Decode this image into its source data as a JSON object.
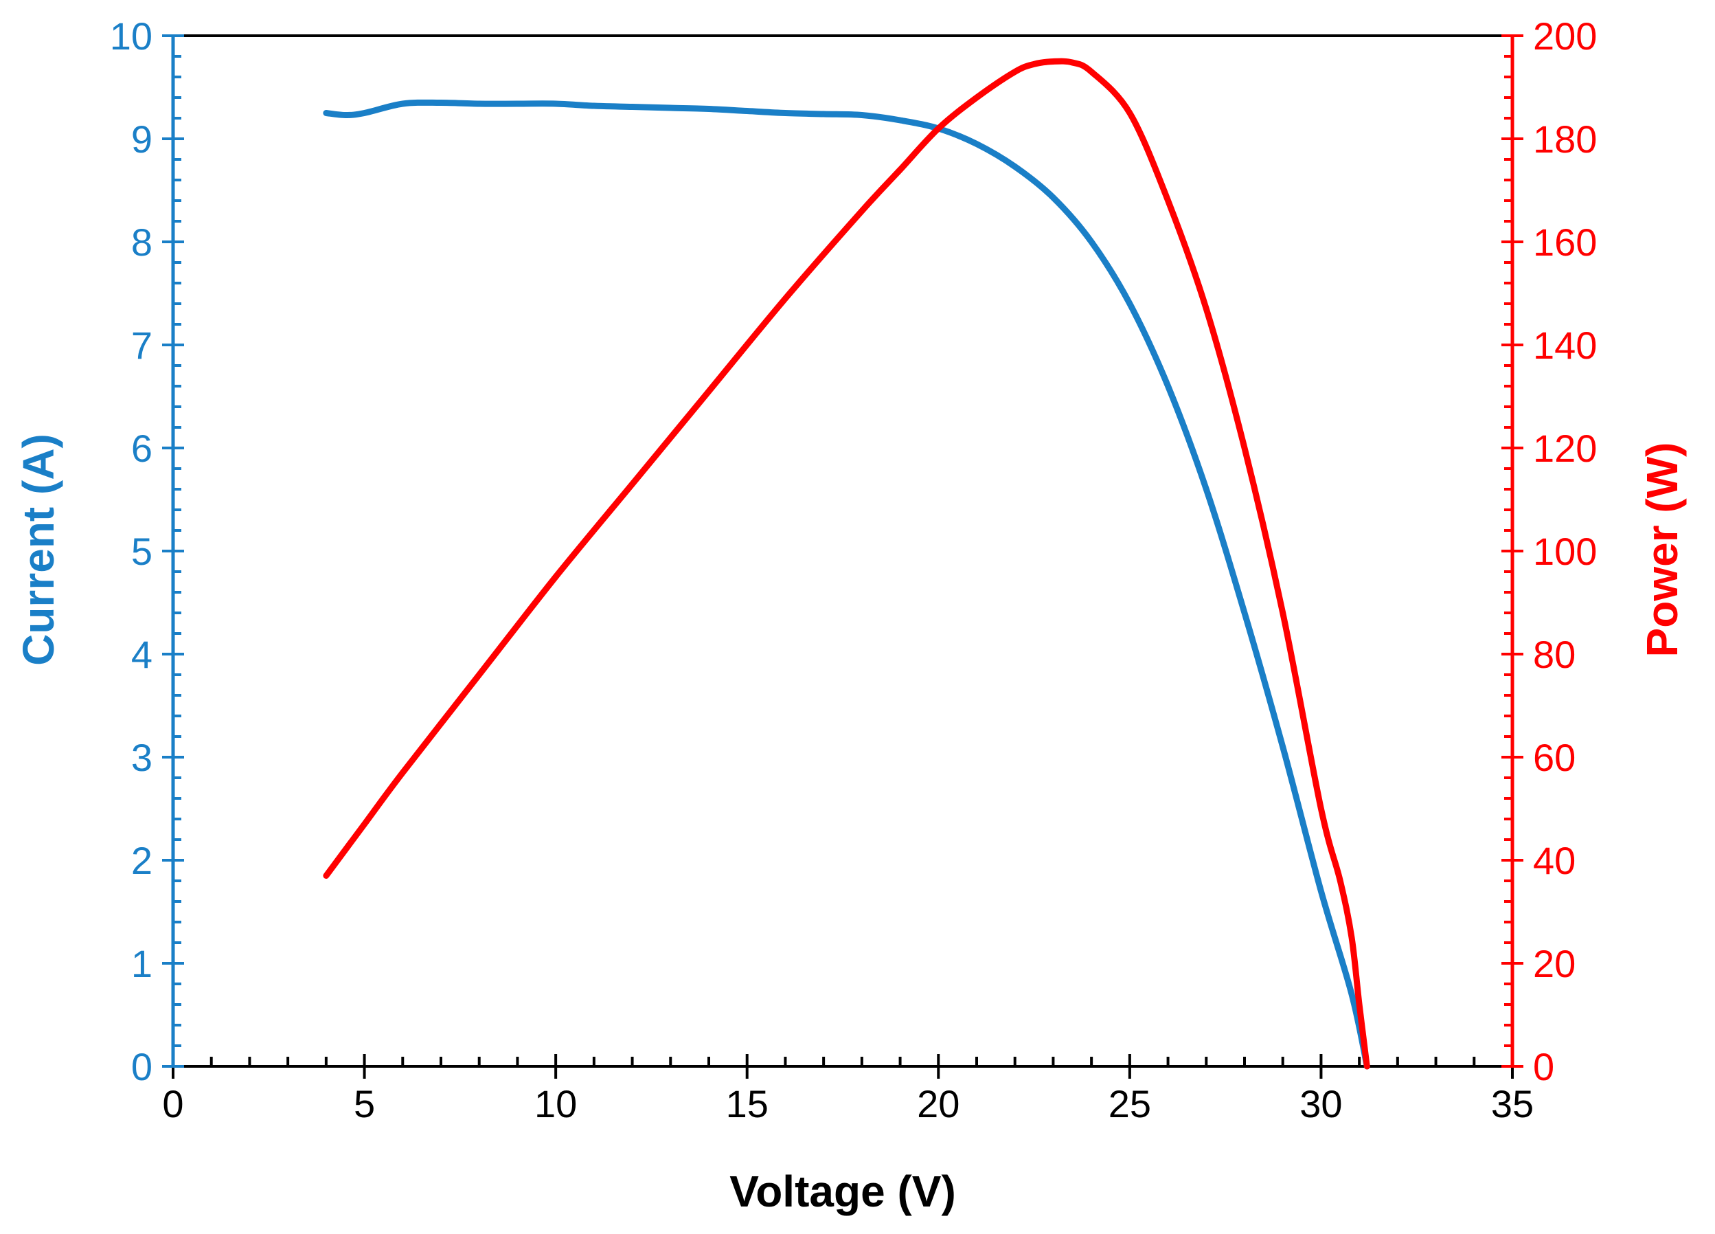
{
  "chart_data": {
    "type": "line",
    "title": "",
    "xlabel": "Voltage (V)",
    "ylabel_left": "Current (A)",
    "ylabel_right": "Power (W)",
    "xlim": [
      0,
      35
    ],
    "ylim_left": [
      0,
      10
    ],
    "ylim_right": [
      0,
      200
    ],
    "x_ticks": [
      "0",
      "5",
      "10",
      "15",
      "20",
      "25",
      "30",
      "35"
    ],
    "y_left_ticks": [
      "0",
      "1",
      "2",
      "3",
      "4",
      "5",
      "6",
      "7",
      "8",
      "9",
      "10"
    ],
    "y_right_ticks": [
      "0",
      "20",
      "40",
      "60",
      "80",
      "100",
      "120",
      "140",
      "160",
      "180",
      "200"
    ],
    "grid": false,
    "colors": {
      "current": "#1a7fc7",
      "power": "#ff0000",
      "axis": "#000000"
    },
    "series": [
      {
        "name": "Current",
        "axis": "left",
        "x": [
          4.0,
          4.5,
          5.0,
          6.0,
          7.0,
          8.0,
          9.0,
          10.0,
          11.0,
          12.0,
          13.0,
          14.0,
          15.0,
          16.0,
          17.0,
          18.0,
          19.0,
          20.0,
          21.0,
          22.0,
          23.0,
          24.0,
          25.0,
          26.0,
          27.0,
          28.0,
          29.0,
          30.0,
          30.8,
          31.2
        ],
        "y": [
          9.25,
          9.23,
          9.25,
          9.34,
          9.35,
          9.34,
          9.34,
          9.34,
          9.32,
          9.31,
          9.3,
          9.29,
          9.27,
          9.25,
          9.24,
          9.23,
          9.18,
          9.1,
          8.95,
          8.73,
          8.43,
          8.0,
          7.4,
          6.6,
          5.6,
          4.4,
          3.1,
          1.7,
          0.7,
          0.0
        ]
      },
      {
        "name": "Power",
        "axis": "right",
        "x": [
          4.0,
          5.0,
          6.0,
          8.0,
          10.0,
          12.0,
          14.0,
          16.0,
          18.0,
          19.0,
          20.0,
          21.0,
          22.0,
          22.5,
          23.0,
          23.5,
          24.0,
          25.0,
          26.0,
          27.0,
          28.0,
          29.0,
          30.0,
          30.5,
          30.8,
          31.0,
          31.2
        ],
        "y": [
          37,
          47,
          57,
          76,
          95,
          113,
          131,
          149,
          166,
          174,
          182,
          188,
          193,
          194.5,
          195,
          194.8,
          193,
          185,
          168,
          147,
          120,
          88,
          50,
          36,
          25,
          12,
          0
        ]
      }
    ]
  }
}
